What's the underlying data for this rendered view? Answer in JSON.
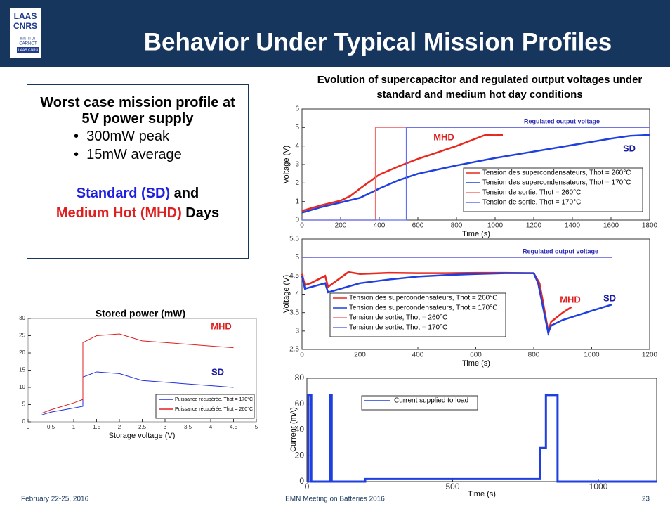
{
  "header": {
    "title": "Behavior Under Typical  Mission Profiles",
    "logo": [
      "LAAS",
      "CNRS",
      "INSTITUT",
      "CARNOT",
      "LAAS CNRS"
    ]
  },
  "textbox": {
    "heading": "Worst case mission profile at 5V power supply",
    "bullets": [
      "300mW peak",
      "15mW average"
    ],
    "days": [
      {
        "text": "Standard (SD)",
        "color": "#1f1fe0"
      },
      {
        "text": " and",
        "color": "#000000"
      },
      {
        "text": "Medium Hot (MHD)",
        "color": "#e02020"
      },
      {
        "text": " Days",
        "color": "#000000"
      }
    ]
  },
  "footer": {
    "date": "February 22-25, 2016",
    "event": "EMN Meeting on Batteries 2016",
    "page": "23"
  },
  "chart_data": [
    {
      "type": "line",
      "title": "Evolution of supercapacitor and regulated output voltages under standard and medium hot day conditions",
      "x_label": "Time (s)",
      "y_label": "Voltage (V)",
      "xlim": [
        0,
        1800
      ],
      "ylim": [
        0,
        6
      ],
      "xticks": [
        0,
        200,
        400,
        600,
        800,
        1000,
        1200,
        1400,
        1600,
        1800
      ],
      "yticks": [
        0,
        1,
        2,
        3,
        4,
        5,
        6
      ],
      "series": [
        {
          "name": "Tension des supercondensateurs, Thot = 260°C",
          "color": "#e8281e",
          "x": [
            0,
            100,
            200,
            250,
            300,
            400,
            500,
            600,
            700,
            800,
            900,
            950,
            1000,
            1040
          ],
          "values": [
            0.5,
            0.8,
            1.05,
            1.3,
            1.7,
            2.45,
            2.9,
            3.3,
            3.65,
            4.0,
            4.4,
            4.6,
            4.58,
            4.6
          ]
        },
        {
          "name": "Tension des supercondensateurs, Thot = 170°C",
          "color": "#1f3fe0",
          "x": [
            0,
            100,
            200,
            300,
            400,
            500,
            600,
            800,
            1000,
            1200,
            1400,
            1600,
            1700,
            1800
          ],
          "values": [
            0.4,
            0.7,
            0.95,
            1.2,
            1.7,
            2.15,
            2.5,
            2.95,
            3.35,
            3.7,
            4.05,
            4.4,
            4.55,
            4.6
          ]
        },
        {
          "name": "Tension de sortie, Thot = 260°C",
          "color": "#f07070",
          "x": [
            0,
            380,
            380,
            1800
          ],
          "values": [
            0,
            0,
            5,
            5
          ]
        },
        {
          "name": "Tension de sortie, Thot = 170°C",
          "color": "#6070f0",
          "x": [
            0,
            540,
            540,
            1800
          ],
          "values": [
            0,
            0,
            5,
            5
          ]
        }
      ],
      "annotations": [
        {
          "text": "MHD",
          "color": "#e02020"
        },
        {
          "text": "SD",
          "color": "#1a1aa0"
        },
        {
          "text": "Regulated output voltage",
          "color": "#2a2ab0"
        }
      ]
    },
    {
      "type": "line",
      "x_label": "Time (s)",
      "y_label": "Voltage (V)",
      "xlim": [
        0,
        1200
      ],
      "ylim": [
        2.5,
        5.5
      ],
      "xticks": [
        0,
        200,
        400,
        600,
        800,
        1000,
        1200
      ],
      "yticks": [
        2.5,
        3,
        3.5,
        4,
        4.5,
        5,
        5.5
      ],
      "series": [
        {
          "name": "Tension des supercondensateurs, Thot = 260°C",
          "color": "#e8281e",
          "x": [
            0,
            10,
            30,
            80,
            90,
            160,
            200,
            300,
            400,
            500,
            600,
            700,
            800,
            820,
            850,
            860,
            900,
            930
          ],
          "values": [
            4.55,
            4.25,
            4.3,
            4.5,
            4.2,
            4.6,
            4.55,
            4.58,
            4.57,
            4.57,
            4.58,
            4.58,
            4.57,
            4.3,
            3.0,
            3.25,
            3.5,
            3.65
          ]
        },
        {
          "name": "Tension des supercondensateurs, Thot = 170°C",
          "color": "#1f3fe0",
          "x": [
            0,
            10,
            80,
            90,
            200,
            300,
            400,
            500,
            600,
            700,
            800,
            815,
            850,
            860,
            900,
            1000,
            1070
          ],
          "values": [
            4.5,
            4.15,
            4.3,
            4.05,
            4.3,
            4.4,
            4.48,
            4.52,
            4.55,
            4.57,
            4.57,
            4.3,
            2.95,
            3.15,
            3.3,
            3.55,
            3.72
          ]
        },
        {
          "name": "Tension de sortie, Thot = 260°C",
          "color": "#f07070",
          "x": [
            0,
            1070
          ],
          "values": [
            5,
            5
          ]
        },
        {
          "name": "Tension de sortie, Thot = 170°C",
          "color": "#6070f0",
          "x": [
            0,
            1070
          ],
          "values": [
            5,
            5
          ]
        }
      ],
      "annotations": [
        {
          "text": "Regulated output voltage",
          "color": "#2a2ab0"
        },
        {
          "text": "MHD",
          "color": "#e02020"
        },
        {
          "text": "SD",
          "color": "#1a1aa0"
        }
      ]
    },
    {
      "type": "line",
      "x_label": "Time (s)",
      "y_label": "Current (mA)",
      "xlim": [
        0,
        1200
      ],
      "ylim": [
        0,
        80
      ],
      "xticks": [
        0,
        500,
        1000
      ],
      "yticks": [
        0,
        20,
        40,
        60,
        80
      ],
      "series": [
        {
          "name": "Current supplied to load",
          "color": "#1f3fe0",
          "x": [
            0,
            5,
            5,
            15,
            15,
            80,
            80,
            85,
            85,
            200,
            200,
            800,
            800,
            820,
            820,
            860,
            860,
            1200
          ],
          "values": [
            0,
            0,
            67,
            67,
            0,
            0,
            67,
            67,
            0,
            0,
            2,
            2,
            26,
            26,
            67,
            67,
            0,
            0
          ]
        }
      ],
      "annotations": []
    },
    {
      "type": "line",
      "title": "Stored power (mW)",
      "x_label": "Storage voltage (V)",
      "xlim": [
        0,
        5
      ],
      "ylim": [
        0,
        30
      ],
      "xticks": [
        0,
        0.5,
        1,
        1.5,
        2,
        2.5,
        3,
        3.5,
        4,
        4.5,
        5
      ],
      "yticks": [
        0,
        5,
        10,
        15,
        20,
        25,
        30
      ],
      "series": [
        {
          "name": "Puissance récupérée, Thot = 170°C",
          "color": "#2030e0",
          "x": [
            0.3,
            0.5,
            1.0,
            1.2,
            1.2,
            1.5,
            2.0,
            2.5,
            3.0,
            3.5,
            4.0,
            4.5
          ],
          "values": [
            2,
            2.8,
            4,
            4.5,
            13,
            14.5,
            14,
            12,
            11.5,
            11,
            10.5,
            10
          ]
        },
        {
          "name": "Puissance récupérée, Thot = 260°C",
          "color": "#e02020",
          "x": [
            0.3,
            0.5,
            1.0,
            1.2,
            1.2,
            1.5,
            2.0,
            2.5,
            3.0,
            3.5,
            4.0,
            4.5
          ],
          "values": [
            2.5,
            3.5,
            5.5,
            6.5,
            23,
            25,
            25.5,
            23.5,
            23,
            22.5,
            22,
            21.5
          ]
        }
      ],
      "annotations": [
        {
          "text": "MHD",
          "color": "#e02020"
        },
        {
          "text": "SD",
          "color": "#1a1aa0"
        }
      ]
    }
  ]
}
